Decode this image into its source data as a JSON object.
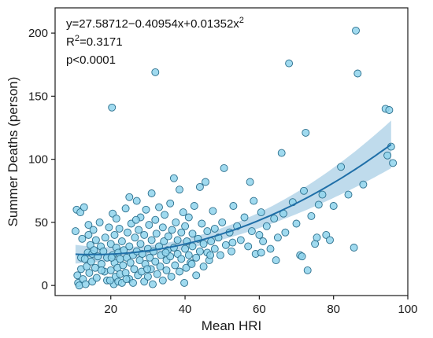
{
  "chart_data": {
    "type": "scatter",
    "xlabel": "Mean HRI",
    "ylabel": "Summer Deaths (person)",
    "xlim": [
      5,
      100
    ],
    "ylim": [
      -8,
      220
    ],
    "x_ticks": [
      "20",
      "40",
      "60",
      "80",
      "100"
    ],
    "x_tick_values": [
      20,
      40,
      60,
      80,
      100
    ],
    "y_ticks": [
      "0",
      "50",
      "100",
      "150",
      "200"
    ],
    "y_tick_values": [
      0,
      50,
      100,
      150,
      200
    ],
    "grid": false,
    "annotations": {
      "equation_main": "y=27.58712−0.40954x+0.01352x",
      "equation_sup": "2",
      "r2_prefix": "R",
      "r2_sup": "2",
      "r2_value": "=0.3171",
      "p_value": "p<0.0001"
    },
    "fit": {
      "type": "quadratic",
      "coefficients": [
        27.58712,
        -0.40954,
        0.01352
      ],
      "x_range": [
        10.5,
        95.5
      ]
    },
    "colors": {
      "points_fill": "#8fd3ec",
      "points_stroke": "#2a6e8c",
      "fit_line": "#1f6fa8",
      "confidence_band": "#a9cfe6"
    },
    "points": [
      {
        "x": 10.5,
        "y": 43
      },
      {
        "x": 10.8,
        "y": 60
      },
      {
        "x": 11.0,
        "y": 8
      },
      {
        "x": 11.2,
        "y": 2
      },
      {
        "x": 11.5,
        "y": 0
      },
      {
        "x": 11.8,
        "y": 58
      },
      {
        "x": 12.0,
        "y": 22
      },
      {
        "x": 12.0,
        "y": 13
      },
      {
        "x": 12.3,
        "y": 37
      },
      {
        "x": 12.5,
        "y": 5
      },
      {
        "x": 12.8,
        "y": 62
      },
      {
        "x": 13.0,
        "y": 21
      },
      {
        "x": 13.2,
        "y": 1
      },
      {
        "x": 13.5,
        "y": 15
      },
      {
        "x": 13.8,
        "y": 26
      },
      {
        "x": 14.0,
        "y": 48
      },
      {
        "x": 14.0,
        "y": 40
      },
      {
        "x": 14.2,
        "y": 10
      },
      {
        "x": 14.5,
        "y": 32
      },
      {
        "x": 14.7,
        "y": 19
      },
      {
        "x": 15.0,
        "y": 3
      },
      {
        "x": 15.0,
        "y": 25
      },
      {
        "x": 15.3,
        "y": 44
      },
      {
        "x": 15.5,
        "y": 28
      },
      {
        "x": 15.8,
        "y": 14
      },
      {
        "x": 16.0,
        "y": 36
      },
      {
        "x": 16.2,
        "y": 6
      },
      {
        "x": 16.5,
        "y": 23
      },
      {
        "x": 17.0,
        "y": 50
      },
      {
        "x": 17.3,
        "y": 31
      },
      {
        "x": 17.5,
        "y": 17
      },
      {
        "x": 18.0,
        "y": 27
      },
      {
        "x": 18.3,
        "y": 11
      },
      {
        "x": 18.5,
        "y": 38
      },
      {
        "x": 19.0,
        "y": 4
      },
      {
        "x": 19.0,
        "y": 22
      },
      {
        "x": 19.5,
        "y": 46
      },
      {
        "x": 20.0,
        "y": 33
      },
      {
        "x": 20.0,
        "y": 12
      },
      {
        "x": 20.3,
        "y": 141
      },
      {
        "x": 20.5,
        "y": 57
      },
      {
        "x": 20.5,
        "y": 24
      },
      {
        "x": 20.8,
        "y": 1
      },
      {
        "x": 21.0,
        "y": 40
      },
      {
        "x": 21.0,
        "y": 18
      },
      {
        "x": 21.3,
        "y": 7
      },
      {
        "x": 21.5,
        "y": 30
      },
      {
        "x": 21.5,
        "y": 53
      },
      {
        "x": 21.8,
        "y": 14
      },
      {
        "x": 22.0,
        "y": 3
      },
      {
        "x": 22.0,
        "y": 26
      },
      {
        "x": 22.3,
        "y": 45
      },
      {
        "x": 22.5,
        "y": 9
      },
      {
        "x": 22.5,
        "y": 21
      },
      {
        "x": 23.0,
        "y": 35
      },
      {
        "x": 23.0,
        "y": 2
      },
      {
        "x": 23.3,
        "y": 16
      },
      {
        "x": 23.5,
        "y": 28
      },
      {
        "x": 24.0,
        "y": 61
      },
      {
        "x": 24.0,
        "y": 10
      },
      {
        "x": 24.3,
        "y": 22
      },
      {
        "x": 24.5,
        "y": 42
      },
      {
        "x": 25.0,
        "y": 5
      },
      {
        "x": 25.0,
        "y": 31
      },
      {
        "x": 25.0,
        "y": 70
      },
      {
        "x": 25.3,
        "y": 18
      },
      {
        "x": 25.5,
        "y": 49
      },
      {
        "x": 26.0,
        "y": 24
      },
      {
        "x": 26.0,
        "y": 2
      },
      {
        "x": 26.3,
        "y": 13
      },
      {
        "x": 26.5,
        "y": 38
      },
      {
        "x": 27.0,
        "y": 67
      },
      {
        "x": 27.0,
        "y": 27
      },
      {
        "x": 27.3,
        "y": 8
      },
      {
        "x": 27.5,
        "y": 44
      },
      {
        "x": 27.8,
        "y": 20
      },
      {
        "x": 28.0,
        "y": 33
      },
      {
        "x": 28.0,
        "y": 54
      },
      {
        "x": 28.3,
        "y": 11
      },
      {
        "x": 28.5,
        "y": 25
      },
      {
        "x": 29.0,
        "y": 3
      },
      {
        "x": 29.0,
        "y": 40
      },
      {
        "x": 29.3,
        "y": 17
      },
      {
        "x": 29.5,
        "y": 60
      },
      {
        "x": 30.0,
        "y": 29
      },
      {
        "x": 30.0,
        "y": 7
      },
      {
        "x": 30.3,
        "y": 48
      },
      {
        "x": 30.5,
        "y": 22
      },
      {
        "x": 30.8,
        "y": 13
      },
      {
        "x": 31.0,
        "y": 36
      },
      {
        "x": 31.0,
        "y": 73
      },
      {
        "x": 31.3,
        "y": 1
      },
      {
        "x": 31.5,
        "y": 27
      },
      {
        "x": 32.0,
        "y": 169
      },
      {
        "x": 32.0,
        "y": 52
      },
      {
        "x": 32.0,
        "y": 19
      },
      {
        "x": 32.3,
        "y": 41
      },
      {
        "x": 32.5,
        "y": 9
      },
      {
        "x": 33.0,
        "y": 62
      },
      {
        "x": 33.0,
        "y": 31
      },
      {
        "x": 33.3,
        "y": 15
      },
      {
        "x": 33.5,
        "y": 24
      },
      {
        "x": 34.0,
        "y": 46
      },
      {
        "x": 34.0,
        "y": 4
      },
      {
        "x": 34.3,
        "y": 35
      },
      {
        "x": 34.5,
        "y": 56
      },
      {
        "x": 35.0,
        "y": 20
      },
      {
        "x": 35.0,
        "y": 12
      },
      {
        "x": 35.3,
        "y": 28
      },
      {
        "x": 35.5,
        "y": 39
      },
      {
        "x": 36.0,
        "y": 65
      },
      {
        "x": 36.0,
        "y": 23
      },
      {
        "x": 36.3,
        "y": 7
      },
      {
        "x": 36.5,
        "y": 44
      },
      {
        "x": 37.0,
        "y": 85
      },
      {
        "x": 37.0,
        "y": 30
      },
      {
        "x": 37.3,
        "y": 16
      },
      {
        "x": 37.5,
        "y": 50
      },
      {
        "x": 38.0,
        "y": 25
      },
      {
        "x": 38.0,
        "y": 36
      },
      {
        "x": 38.5,
        "y": 76
      },
      {
        "x": 38.5,
        "y": 11
      },
      {
        "x": 39.0,
        "y": 42
      },
      {
        "x": 39.0,
        "y": 21
      },
      {
        "x": 39.5,
        "y": 58
      },
      {
        "x": 40.0,
        "y": 29
      },
      {
        "x": 40.0,
        "y": 47
      },
      {
        "x": 40.3,
        "y": 14
      },
      {
        "x": 40.5,
        "y": 35
      },
      {
        "x": 41.0,
        "y": 24
      },
      {
        "x": 41.0,
        "y": 54
      },
      {
        "x": 41.5,
        "y": 18
      },
      {
        "x": 42.0,
        "y": 41
      },
      {
        "x": 42.0,
        "y": 31
      },
      {
        "x": 42.5,
        "y": 63
      },
      {
        "x": 43.0,
        "y": 22
      },
      {
        "x": 43.0,
        "y": 8
      },
      {
        "x": 43.5,
        "y": 37
      },
      {
        "x": 44.0,
        "y": 78
      },
      {
        "x": 44.0,
        "y": 27
      },
      {
        "x": 44.5,
        "y": 49
      },
      {
        "x": 45.0,
        "y": 33
      },
      {
        "x": 45.0,
        "y": 15
      },
      {
        "x": 45.5,
        "y": 82
      },
      {
        "x": 46.0,
        "y": 26
      },
      {
        "x": 46.0,
        "y": 43
      },
      {
        "x": 46.5,
        "y": 20
      },
      {
        "x": 47.0,
        "y": 35
      },
      {
        "x": 47.5,
        "y": 59
      },
      {
        "x": 48.0,
        "y": 29
      },
      {
        "x": 48.0,
        "y": 45
      },
      {
        "x": 49.0,
        "y": 38
      },
      {
        "x": 49.5,
        "y": 24
      },
      {
        "x": 50.0,
        "y": 50
      },
      {
        "x": 50.5,
        "y": 93
      },
      {
        "x": 51.0,
        "y": 32
      },
      {
        "x": 52.0,
        "y": 42
      },
      {
        "x": 52.5,
        "y": 27
      },
      {
        "x": 53.0,
        "y": 63
      },
      {
        "x": 54.0,
        "y": 47
      },
      {
        "x": 55.0,
        "y": 36
      },
      {
        "x": 56.0,
        "y": 54
      },
      {
        "x": 57.0,
        "y": 31
      },
      {
        "x": 57.5,
        "y": 82
      },
      {
        "x": 58.0,
        "y": 43
      },
      {
        "x": 58.5,
        "y": 67
      },
      {
        "x": 59.0,
        "y": 25
      },
      {
        "x": 60.0,
        "y": 40
      },
      {
        "x": 60.5,
        "y": 58
      },
      {
        "x": 61.0,
        "y": 35
      },
      {
        "x": 62.0,
        "y": 47
      },
      {
        "x": 63.0,
        "y": 29
      },
      {
        "x": 64.0,
        "y": 53
      },
      {
        "x": 65.0,
        "y": 38
      },
      {
        "x": 66.0,
        "y": 105
      },
      {
        "x": 66.5,
        "y": 57
      },
      {
        "x": 67.0,
        "y": 42
      },
      {
        "x": 68.0,
        "y": 176
      },
      {
        "x": 69.0,
        "y": 66
      },
      {
        "x": 70.0,
        "y": 49
      },
      {
        "x": 71.0,
        "y": 24
      },
      {
        "x": 72.0,
        "y": 75
      },
      {
        "x": 72.5,
        "y": 121
      },
      {
        "x": 73.0,
        "y": 12
      },
      {
        "x": 74.0,
        "y": 55
      },
      {
        "x": 75.0,
        "y": 33
      },
      {
        "x": 76.0,
        "y": 64
      },
      {
        "x": 77.0,
        "y": 72
      },
      {
        "x": 78.0,
        "y": 40
      },
      {
        "x": 79.0,
        "y": 36
      },
      {
        "x": 80.0,
        "y": 63
      },
      {
        "x": 82.0,
        "y": 94
      },
      {
        "x": 84.0,
        "y": 72
      },
      {
        "x": 85.5,
        "y": 30
      },
      {
        "x": 86.0,
        "y": 202
      },
      {
        "x": 86.5,
        "y": 168
      },
      {
        "x": 88.0,
        "y": 80
      },
      {
        "x": 94.0,
        "y": 140
      },
      {
        "x": 94.5,
        "y": 103
      },
      {
        "x": 95.0,
        "y": 139
      },
      {
        "x": 95.5,
        "y": 110
      },
      {
        "x": 96.0,
        "y": 97
      },
      {
        "x": 17.5,
        "y": 12
      },
      {
        "x": 19.8,
        "y": 4
      },
      {
        "x": 20.2,
        "y": 22
      },
      {
        "x": 24.2,
        "y": 5
      },
      {
        "x": 26.8,
        "y": 52
      },
      {
        "x": 29.8,
        "y": 13
      },
      {
        "x": 34.8,
        "y": 26
      },
      {
        "x": 39.8,
        "y": 2
      },
      {
        "x": 41.8,
        "y": 17
      },
      {
        "x": 46.8,
        "y": 24
      },
      {
        "x": 52.8,
        "y": 34
      },
      {
        "x": 60.5,
        "y": 26
      },
      {
        "x": 71.5,
        "y": 23
      },
      {
        "x": 75.5,
        "y": 38
      },
      {
        "x": 64.5,
        "y": 20
      }
    ]
  }
}
